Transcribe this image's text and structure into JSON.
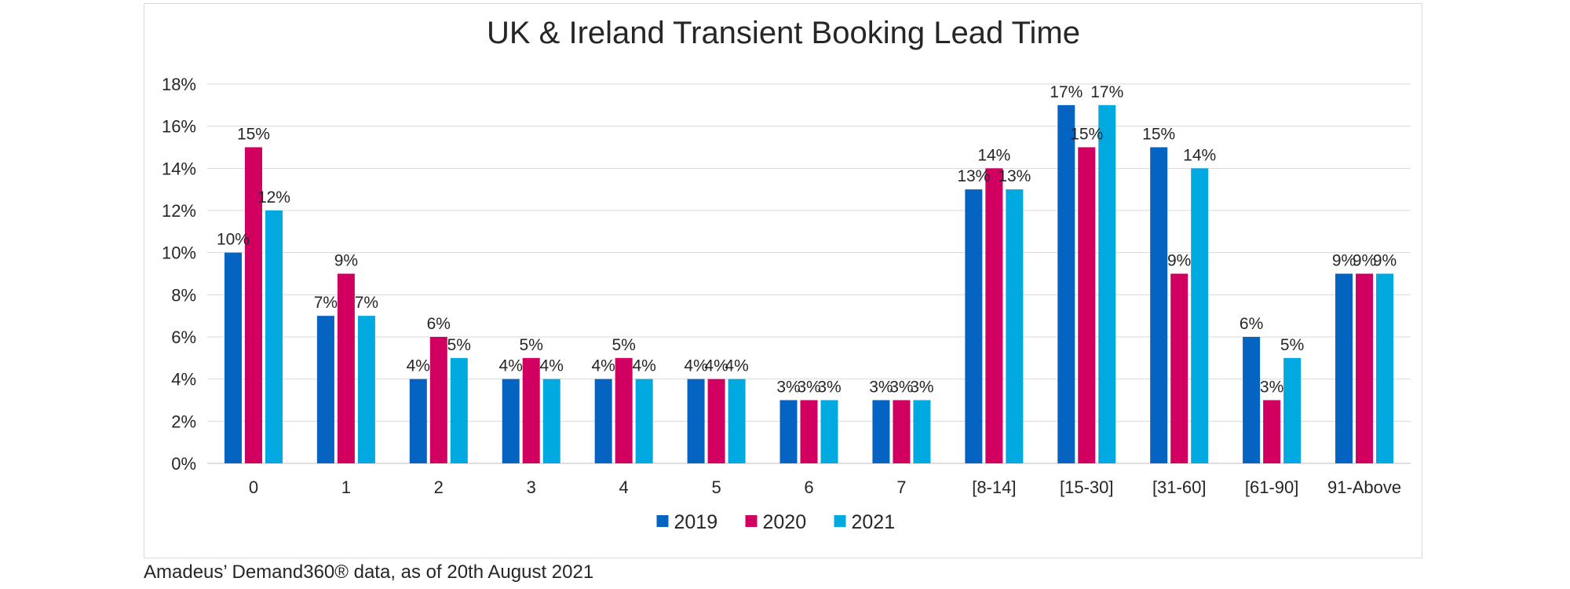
{
  "chart_data": {
    "type": "bar",
    "title": "UK & Ireland Transient Booking Lead Time",
    "categories": [
      "0",
      "1",
      "2",
      "3",
      "4",
      "5",
      "6",
      "7",
      "[8-14]",
      "[15-30]",
      "[31-60]",
      "[61-90]",
      "91-Above"
    ],
    "series": [
      {
        "name": "2019",
        "color": "#0563C1",
        "values": [
          10,
          7,
          4,
          4,
          4,
          4,
          3,
          3,
          13,
          17,
          15,
          6,
          9
        ]
      },
      {
        "name": "2020",
        "color": "#D10060",
        "values": [
          15,
          9,
          6,
          5,
          5,
          4,
          3,
          3,
          14,
          15,
          9,
          3,
          9
        ]
      },
      {
        "name": "2021",
        "color": "#00A9E0",
        "values": [
          12,
          7,
          5,
          4,
          4,
          4,
          3,
          3,
          13,
          17,
          14,
          5,
          9
        ]
      }
    ],
    "ylim": [
      0,
      18
    ],
    "yticks": [
      0,
      2,
      4,
      6,
      8,
      10,
      12,
      14,
      16,
      18
    ],
    "tick_suffix": "%",
    "grid": true,
    "legend": "bottom"
  },
  "footer": {
    "source": "Amadeus’ Demand360® data, as of 20th August 2021"
  }
}
